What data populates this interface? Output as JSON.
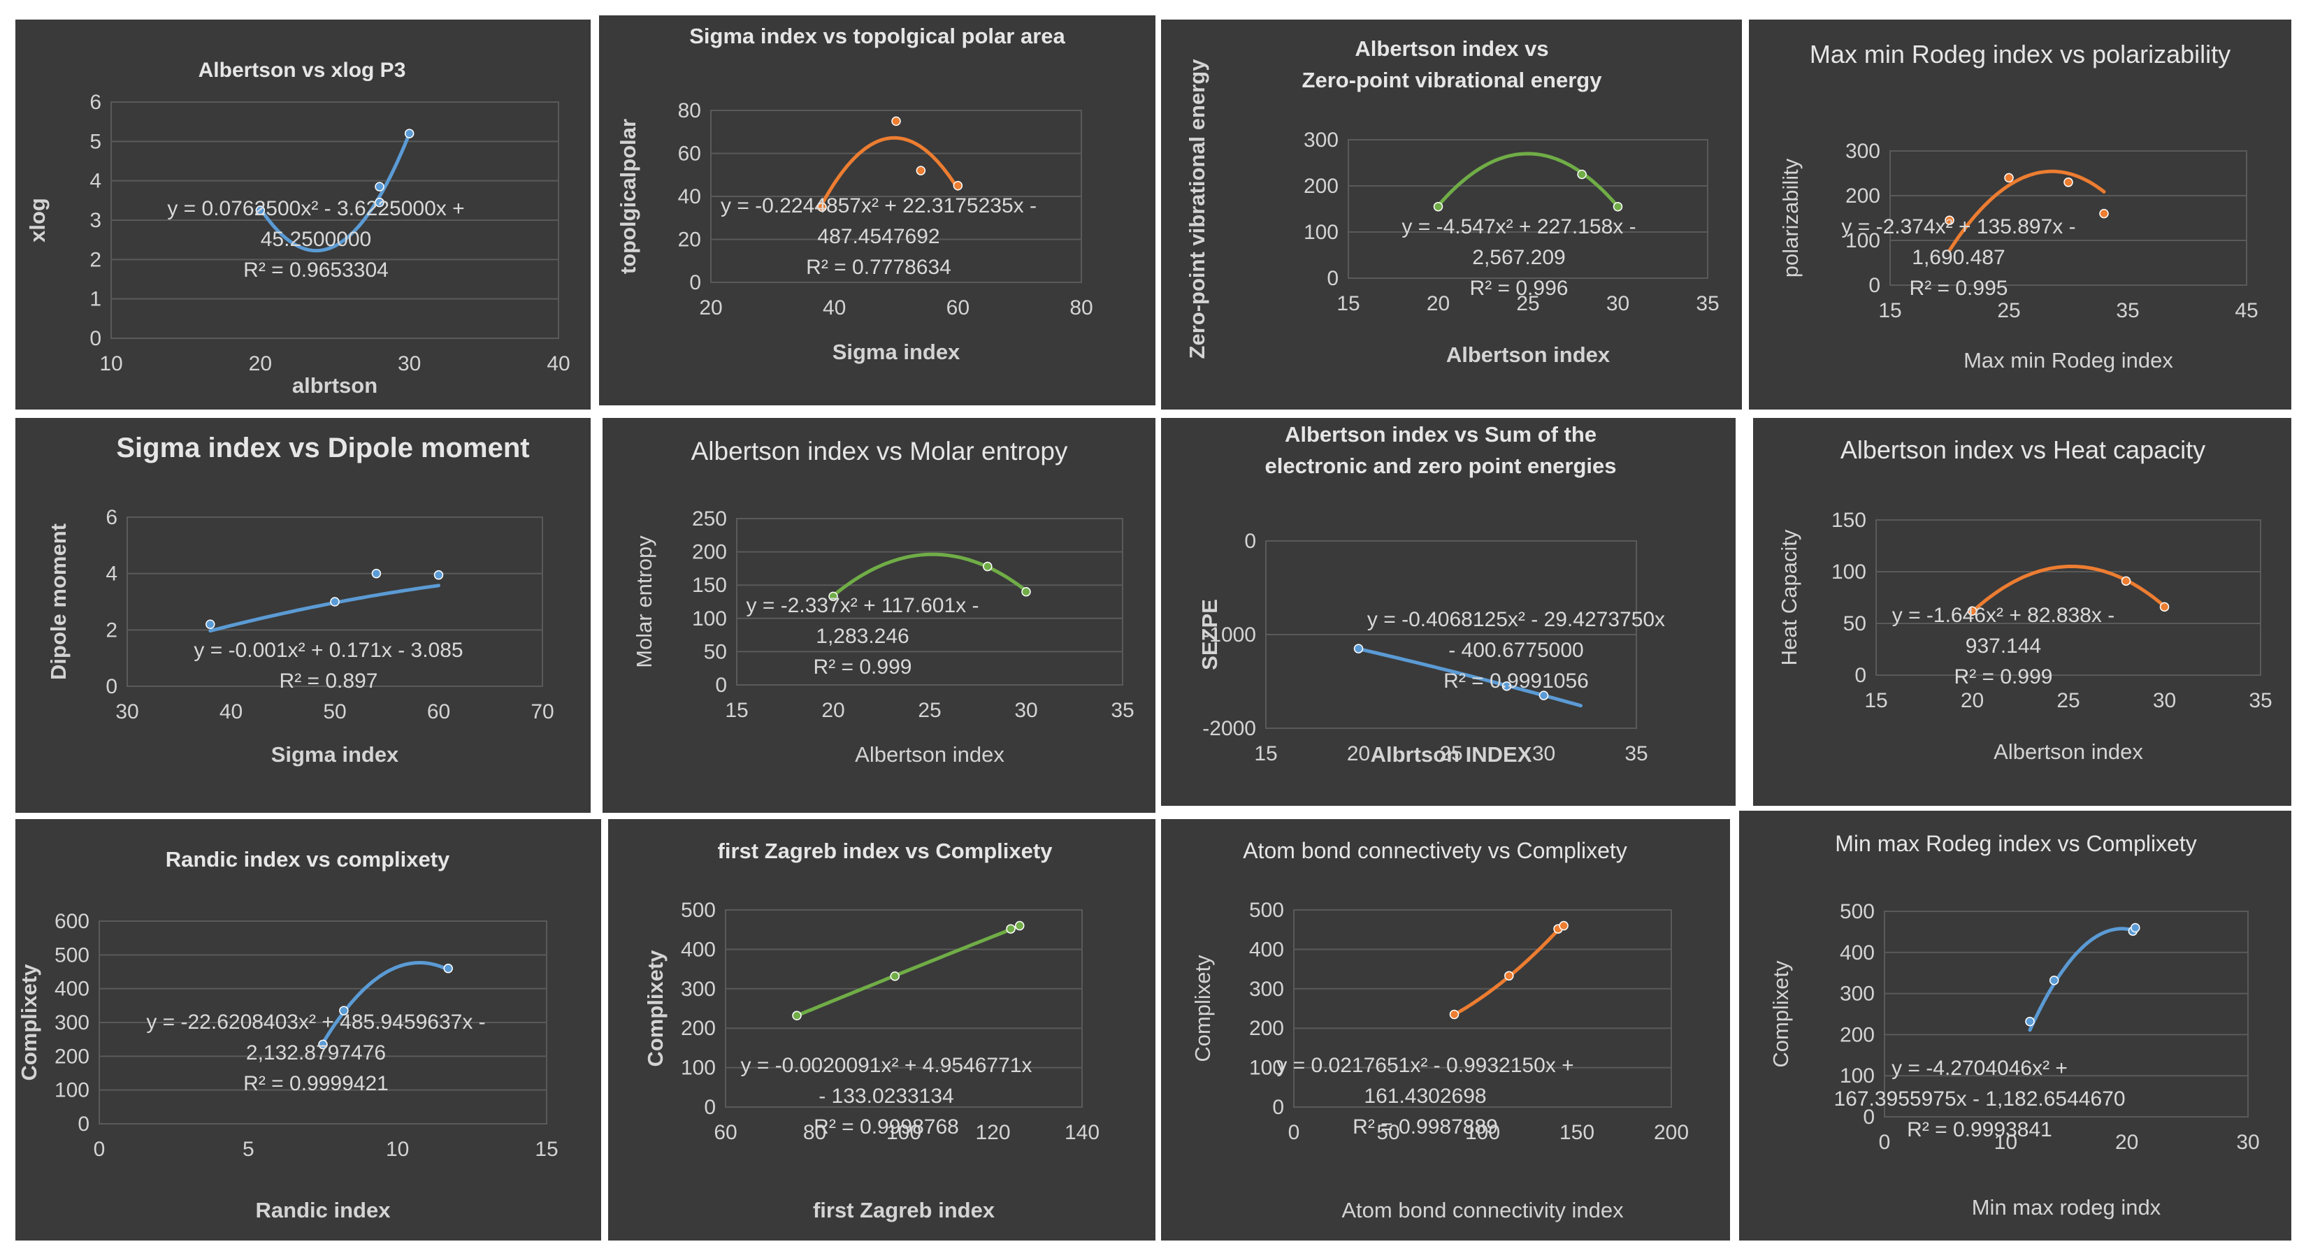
{
  "colors": {
    "panel_bg": "#3a3a3a",
    "blue": "#5b9bd5",
    "orange": "#ed7d31",
    "green": "#70ad47",
    "text": "#d9d9d9"
  },
  "chart_data": [
    {
      "type": "scatter",
      "title": "Albertson vs xlog P3",
      "title_bold": true,
      "xlabel": "albrtson",
      "ylabel": "xlog",
      "xlim": [
        10,
        40
      ],
      "ylim": [
        0,
        6
      ],
      "xticks": [
        10,
        20,
        30,
        40
      ],
      "yticks": [
        0,
        1,
        2,
        3,
        4,
        5,
        6
      ],
      "color": "blue",
      "points": [
        [
          20,
          3.25
        ],
        [
          28,
          3.45
        ],
        [
          28,
          3.85
        ],
        [
          30,
          5.2
        ]
      ],
      "trend": [
        0.07625,
        -3.6225,
        45.25
      ],
      "trend_range": [
        20,
        30
      ],
      "equation": [
        "y = 0.0762500x² - 3.6225000x +",
        "45.2500000",
        "R² = 0.9653304"
      ]
    },
    {
      "type": "scatter",
      "title": "Sigma index vs topolgical polar area",
      "title_bold": true,
      "xlabel": "Sigma index",
      "ylabel": "topolgicalpolar",
      "xlim": [
        20,
        80
      ],
      "ylim": [
        0,
        80
      ],
      "xticks": [
        20,
        40,
        60,
        80
      ],
      "yticks": [
        0,
        20,
        40,
        60,
        80
      ],
      "color": "orange",
      "points": [
        [
          38,
          35
        ],
        [
          50,
          75
        ],
        [
          54,
          52
        ],
        [
          60,
          45
        ]
      ],
      "trend": [
        -0.2244857,
        22.3175235,
        -487.4547692
      ],
      "trend_range": [
        38,
        60
      ],
      "equation": [
        "y = -0.2244857x² + 22.3175235x -",
        "487.4547692",
        "R² = 0.7778634"
      ]
    },
    {
      "type": "scatter",
      "title": "Albertson index  vs Zero-point vibrational energy",
      "title_bold": true,
      "xlabel": "Albertson index",
      "ylabel": "Zero-point vibrational energy",
      "xlim": [
        15,
        35
      ],
      "ylim": [
        0,
        300
      ],
      "xticks": [
        15,
        20,
        25,
        30,
        35
      ],
      "yticks": [
        0,
        100,
        200,
        300
      ],
      "color": "green",
      "points": [
        [
          20,
          155
        ],
        [
          28,
          225
        ],
        [
          30,
          155
        ]
      ],
      "trend": [
        -4.547,
        227.158,
        -2567.209
      ],
      "trend_range": [
        20,
        30
      ],
      "equation": [
        "y = -4.547x² + 227.158x -",
        "2,567.209",
        "R² = 0.996"
      ]
    },
    {
      "type": "scatter",
      "title": "Max min Rodeg index  vs polarizability",
      "title_bold": false,
      "xlabel": "Max min Rodeg index",
      "ylabel": "polarizability",
      "xlim": [
        15,
        45
      ],
      "ylim": [
        0,
        300
      ],
      "xticks": [
        15,
        25,
        35,
        45
      ],
      "yticks": [
        0,
        100,
        200,
        300
      ],
      "color": "orange",
      "points": [
        [
          20,
          145
        ],
        [
          25,
          240
        ],
        [
          30,
          230
        ],
        [
          33,
          160
        ]
      ],
      "trend": [
        -2.374,
        135.897,
        -1690.487
      ],
      "trend_range": [
        20,
        33
      ],
      "equation": [
        "y = -2.374x² + 135.897x -",
        "1,690.487",
        "R² = 0.995"
      ]
    },
    {
      "type": "scatter",
      "title": "Sigma index vs Dipole moment",
      "title_bold": true,
      "xlabel": "Sigma index",
      "ylabel": "Dipole moment",
      "xlim": [
        30,
        70
      ],
      "ylim": [
        0,
        6
      ],
      "xticks": [
        30,
        40,
        50,
        60,
        70
      ],
      "yticks": [
        0,
        2,
        4,
        6
      ],
      "color": "blue",
      "points": [
        [
          38,
          2.2
        ],
        [
          50,
          3.0
        ],
        [
          54,
          4.0
        ],
        [
          60,
          3.95
        ]
      ],
      "trend": [
        -0.001,
        0.171,
        -3.085
      ],
      "trend_range": [
        38,
        60
      ],
      "equation": [
        "y = -0.001x² + 0.171x - 3.085",
        "R² = 0.897"
      ]
    },
    {
      "type": "scatter",
      "title": "Albertson index vs Molar entropy",
      "title_bold": false,
      "xlabel": "Albertson index",
      "ylabel": "Molar entropy",
      "xlim": [
        15,
        35
      ],
      "ylim": [
        0,
        250
      ],
      "xticks": [
        15,
        20,
        25,
        30,
        35
      ],
      "yticks": [
        0,
        50,
        100,
        150,
        200,
        250
      ],
      "color": "green",
      "points": [
        [
          20,
          133
        ],
        [
          28,
          178
        ],
        [
          30,
          140
        ]
      ],
      "trend": [
        -2.337,
        117.601,
        -1283.246
      ],
      "trend_range": [
        20,
        30
      ],
      "equation": [
        "y = -2.337x² + 117.601x -",
        "1,283.246",
        "R² = 0.999"
      ]
    },
    {
      "type": "scatter",
      "title": "Albertson index vs Sum of the electronic and zero point energies",
      "title_bold": true,
      "xlabel": "Albrtson INDEX",
      "ylabel": "SEZPE",
      "xlim": [
        15,
        35
      ],
      "ylim": [
        -2000,
        0
      ],
      "xticks": [
        15,
        20,
        25,
        30,
        35
      ],
      "yticks": [
        0,
        -1000,
        -2000
      ],
      "color": "blue",
      "points": [
        [
          20,
          -1150
        ],
        [
          28,
          -1550
        ],
        [
          30,
          -1650
        ]
      ],
      "trend": [
        -0.4068125,
        -29.427375,
        -400.6775
      ],
      "trend_range": [
        20,
        32
      ],
      "equation": [
        "y = -0.4068125x² - 29.4273750x",
        "- 400.6775000",
        "R² = 0.9991056"
      ]
    },
    {
      "type": "scatter",
      "title": "Albertson index  vs Heat capacity",
      "title_bold": false,
      "title_parts": [
        "Albertson index ",
        "vs Heat capacity"
      ],
      "xlabel": "Albertson index",
      "ylabel": "Heat Capacity",
      "xlim": [
        15,
        35
      ],
      "ylim": [
        0,
        150
      ],
      "xticks": [
        15,
        20,
        25,
        30,
        35
      ],
      "yticks": [
        0,
        50,
        100,
        150
      ],
      "color": "orange",
      "points": [
        [
          20,
          62
        ],
        [
          28,
          91
        ],
        [
          30,
          66
        ]
      ],
      "trend": [
        -1.646,
        82.838,
        -937.144
      ],
      "trend_range": [
        20,
        30
      ],
      "equation": [
        "y = -1.646x² + 82.838x -",
        "937.144",
        "R² = 0.999"
      ]
    },
    {
      "type": "scatter",
      "title": "Randic index vs complixety",
      "title_bold": true,
      "xlabel": "Randic index",
      "ylabel": "Complixety",
      "xlim": [
        0,
        15
      ],
      "ylim": [
        0,
        600
      ],
      "xticks": [
        0,
        5,
        10,
        15
      ],
      "yticks": [
        0,
        100,
        200,
        300,
        400,
        500,
        600
      ],
      "color": "blue",
      "points": [
        [
          7.5,
          235
        ],
        [
          8.2,
          335
        ],
        [
          11.7,
          460
        ]
      ],
      "trend": [
        -22.6208403,
        485.9459637,
        -2132.8797476
      ],
      "trend_range": [
        7.5,
        11.7
      ],
      "equation": [
        "y = -22.6208403x² + 485.9459637x -",
        "2,132.8797476",
        "R² = 0.9999421"
      ]
    },
    {
      "type": "scatter",
      "title": "first Zagreb index vs Complixety",
      "title_bold": true,
      "xlabel": "first Zagreb index",
      "ylabel": "Complixety",
      "xlim": [
        60,
        140
      ],
      "ylim": [
        0,
        500
      ],
      "xticks": [
        60,
        80,
        100,
        120,
        140
      ],
      "yticks": [
        0,
        100,
        200,
        300,
        400,
        500
      ],
      "color": "green",
      "points": [
        [
          76,
          232
        ],
        [
          98,
          332
        ],
        [
          124,
          452
        ],
        [
          126,
          460
        ]
      ],
      "trend": [
        -0.0020091,
        4.9546771,
        -133.0233134
      ],
      "trend_range": [
        76,
        126
      ],
      "equation": [
        "y = -0.0020091x² + 4.9546771x",
        "- 133.0233134",
        "R² = 0.9998768"
      ]
    },
    {
      "type": "scatter",
      "title": "Atom bond connectivety vs Complixety",
      "title_bold": false,
      "title_parts": [
        "Atom bond connectivety vs ",
        "Complixety"
      ],
      "xlabel": "Atom bond connectivity index",
      "ylabel": "Complixety",
      "xlim": [
        0,
        200
      ],
      "ylim": [
        0,
        500
      ],
      "xticks": [
        0,
        50,
        100,
        150,
        200
      ],
      "yticks": [
        0,
        100,
        200,
        300,
        400,
        500
      ],
      "color": "orange",
      "points": [
        [
          85,
          235
        ],
        [
          114,
          333
        ],
        [
          140,
          452
        ],
        [
          143,
          460
        ]
      ],
      "trend": [
        0.0217651,
        -0.993215,
        161.4302698
      ],
      "trend_range": [
        85,
        143
      ],
      "equation": [
        "y = 0.0217651x² - 0.9932150x +",
        "161.4302698",
        "R² = 0.9987889"
      ]
    },
    {
      "type": "scatter",
      "title": "Min max Rodeg index  vs Complixety",
      "title_bold": false,
      "title_parts": [
        "Min max Rodeg index  vs ",
        "Complixety"
      ],
      "xlabel": "Min max rodeg indx",
      "ylabel": "Complixety",
      "xlim": [
        0,
        30
      ],
      "ylim": [
        0,
        500
      ],
      "xticks": [
        0,
        10,
        20,
        30
      ],
      "yticks": [
        0,
        100,
        200,
        300,
        400,
        500
      ],
      "color": "blue",
      "points": [
        [
          12,
          232
        ],
        [
          14,
          332
        ],
        [
          20.5,
          452
        ],
        [
          20.7,
          460
        ]
      ],
      "trend": [
        -4.2704046,
        167.3955975,
        -1182.654467
      ],
      "trend_range": [
        12,
        20.7
      ],
      "equation": [
        "y = -4.2704046x² +",
        "167.3955975x - 1,182.6544670",
        "R² = 0.9993841"
      ]
    }
  ]
}
